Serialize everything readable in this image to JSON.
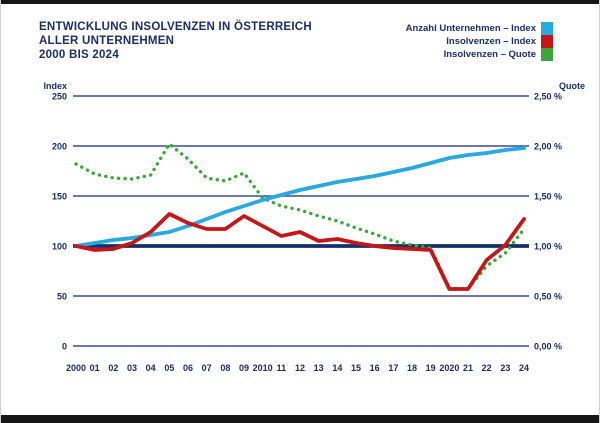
{
  "title": {
    "line1": "ENTWICKLUNG INSOLVENZEN IN ÖSTERREICH",
    "line2": "ALLER UNTERNEHMEN",
    "line3": "2000 BIS 2024"
  },
  "legend": [
    {
      "label": "Anzahl Unternehmen – Index",
      "color": "#29a9e0"
    },
    {
      "label": "Insolvenzen – Index",
      "color": "#c51718"
    },
    {
      "label": "Insolvenzen – Quote",
      "color": "#3aa63c"
    }
  ],
  "chart_data": {
    "type": "line",
    "title": "Entwicklung Insolvenzen in Österreich aller Unternehmen 2000 bis 2024",
    "x_labels": [
      "2000",
      "01",
      "02",
      "03",
      "04",
      "05",
      "06",
      "07",
      "08",
      "09",
      "2010",
      "11",
      "12",
      "13",
      "14",
      "15",
      "16",
      "17",
      "18",
      "19",
      "2020",
      "21",
      "22",
      "23",
      "24"
    ],
    "left_axis": {
      "label": "Index",
      "range": [
        0,
        250
      ],
      "ticks": [
        250,
        200,
        150,
        100,
        50,
        0
      ]
    },
    "right_axis": {
      "label": "Quote",
      "range_percent": [
        0,
        2.5
      ],
      "ticks": [
        {
          "value": 2.5,
          "label": "2,50 %"
        },
        {
          "value": 2.0,
          "label": "2,00 %"
        },
        {
          "value": 1.5,
          "label": "1,50 %"
        },
        {
          "value": 1.0,
          "label": "1,00 %"
        },
        {
          "value": 0.5,
          "label": "0,50 %"
        },
        {
          "value": 0.0,
          "label": "0,00 %"
        }
      ]
    },
    "emphasized_gridline": 100,
    "grid": true,
    "legend_position": "top-right",
    "series": [
      {
        "name": "Anzahl Unternehmen – Index",
        "axis": "left",
        "style": "solid",
        "color": "#29a9e0",
        "values": [
          100,
          103,
          106,
          108,
          111,
          114,
          120,
          127,
          134,
          140,
          146,
          151,
          156,
          160,
          164,
          167,
          170,
          174,
          178,
          183,
          188,
          191,
          193,
          196,
          198
        ]
      },
      {
        "name": "Insolvenzen – Index",
        "axis": "left",
        "style": "solid",
        "color": "#c51718",
        "values": [
          100,
          96,
          97,
          103,
          114,
          132,
          123,
          117,
          117,
          130,
          120,
          110,
          114,
          105,
          107,
          103,
          100,
          98,
          97,
          96,
          57,
          57,
          86,
          101,
          127
        ]
      },
      {
        "name": "Insolvenzen – Quote",
        "axis": "right",
        "style": "dotted",
        "color": "#3aa63c",
        "values": [
          1.82,
          1.72,
          1.68,
          1.67,
          1.71,
          2.02,
          1.87,
          1.68,
          1.65,
          1.73,
          1.48,
          1.4,
          1.36,
          1.3,
          1.25,
          1.18,
          1.12,
          1.05,
          1.01,
          0.98,
          0.58,
          0.57,
          0.8,
          0.93,
          1.17
        ]
      }
    ]
  }
}
